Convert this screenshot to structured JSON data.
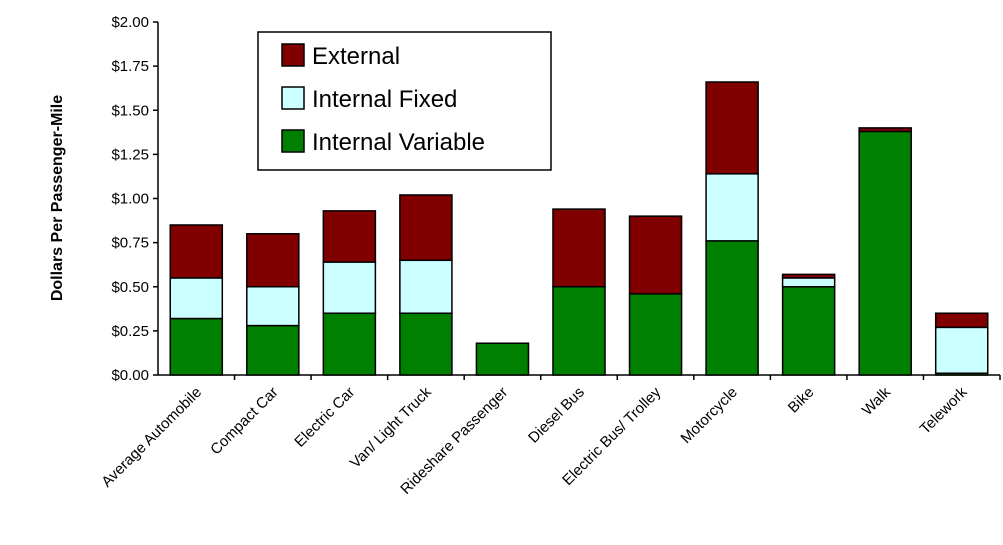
{
  "chart_data": {
    "type": "bar",
    "stacked": true,
    "title": "",
    "xlabel": "",
    "ylabel": "Dollars Per Passenger-Mile",
    "ylim": [
      0,
      2.0
    ],
    "yticks": [
      "$0.00",
      "$0.25",
      "$0.50",
      "$0.75",
      "$1.00",
      "$1.25",
      "$1.50",
      "$1.75",
      "$2.00"
    ],
    "grid": false,
    "legend_position": "top-left",
    "categories": [
      "Average Automobile",
      "Compact Car",
      "Electric Car",
      "Van/ Light Truck",
      "Rideshare Passenger",
      "Diesel Bus",
      "Electric Bus/ Trolley",
      "Motorcycle",
      "Bike",
      "Walk",
      "Telework"
    ],
    "series": [
      {
        "name": "Internal Variable",
        "color": "#008000",
        "values": [
          0.32,
          0.28,
          0.35,
          0.35,
          0.18,
          0.5,
          0.46,
          0.76,
          0.5,
          1.38,
          0.01
        ]
      },
      {
        "name": "Internal Fixed",
        "color": "#ccffff",
        "values": [
          0.23,
          0.22,
          0.29,
          0.3,
          0.0,
          0.0,
          0.0,
          0.38,
          0.05,
          0.0,
          0.26
        ]
      },
      {
        "name": "External",
        "color": "#800000",
        "values": [
          0.3,
          0.3,
          0.29,
          0.37,
          0.0,
          0.44,
          0.44,
          0.52,
          0.02,
          0.02,
          0.08
        ]
      }
    ],
    "legend_order": [
      "External",
      "Internal Fixed",
      "Internal Variable"
    ]
  }
}
